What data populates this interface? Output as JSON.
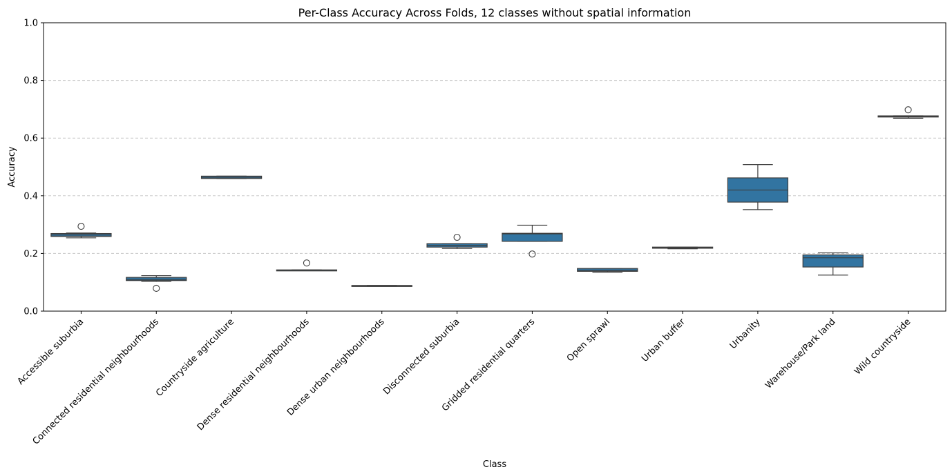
{
  "chart_data": {
    "type": "box",
    "title": "Per-Class Accuracy Across Folds, 12 classes without spatial information",
    "xlabel": "Class",
    "ylabel": "Accuracy",
    "ylim": [
      0,
      1.0
    ],
    "yticks": [
      "0.0",
      "0.2",
      "0.4",
      "0.6",
      "0.8",
      "1.0"
    ],
    "grid": "horizontal dashed",
    "box_color": "#3274a1",
    "categories": [
      "Accessible suburbia",
      "Connected residential neighbourhoods",
      "Countryside agriculture",
      "Dense residential neighbourhoods",
      "Dense urban neighbourhoods",
      "Disconnected suburbia",
      "Gridded residential quarters",
      "Open sprawl",
      "Urban buffer",
      "Urbanity",
      "Warehouse/Park land",
      "Wild countryside"
    ],
    "boxes": [
      {
        "whisker_low": 0.254,
        "q1": 0.259,
        "median": 0.264,
        "q3": 0.269,
        "whisker_high": 0.271,
        "outliers": [
          0.294
        ]
      },
      {
        "whisker_low": 0.103,
        "q1": 0.106,
        "median": 0.11,
        "q3": 0.117,
        "whisker_high": 0.123,
        "outliers": [
          0.079
        ]
      },
      {
        "whisker_low": 0.46,
        "q1": 0.46,
        "median": 0.464,
        "q3": 0.468,
        "whisker_high": 0.468,
        "outliers": []
      },
      {
        "whisker_low": 0.141,
        "q1": 0.141,
        "median": 0.142,
        "q3": 0.143,
        "whisker_high": 0.143,
        "outliers": [
          0.167
        ]
      },
      {
        "whisker_low": 0.086,
        "q1": 0.086,
        "median": 0.087,
        "q3": 0.089,
        "whisker_high": 0.089,
        "outliers": []
      },
      {
        "whisker_low": 0.217,
        "q1": 0.222,
        "median": 0.228,
        "q3": 0.234,
        "whisker_high": 0.234,
        "outliers": [
          0.256
        ]
      },
      {
        "whisker_low": 0.242,
        "q1": 0.242,
        "median": 0.268,
        "q3": 0.27,
        "whisker_high": 0.298,
        "outliers": [
          0.198
        ]
      },
      {
        "whisker_low": 0.135,
        "q1": 0.138,
        "median": 0.142,
        "q3": 0.148,
        "whisker_high": 0.148,
        "outliers": []
      },
      {
        "whisker_low": 0.216,
        "q1": 0.218,
        "median": 0.22,
        "q3": 0.222,
        "whisker_high": 0.222,
        "outliers": []
      },
      {
        "whisker_low": 0.352,
        "q1": 0.378,
        "median": 0.42,
        "q3": 0.462,
        "whisker_high": 0.508,
        "outliers": []
      },
      {
        "whisker_low": 0.125,
        "q1": 0.153,
        "median": 0.185,
        "q3": 0.195,
        "whisker_high": 0.202,
        "outliers": []
      },
      {
        "whisker_low": 0.669,
        "q1": 0.673,
        "median": 0.675,
        "q3": 0.677,
        "whisker_high": 0.677,
        "outliers": [
          0.698
        ]
      }
    ]
  }
}
